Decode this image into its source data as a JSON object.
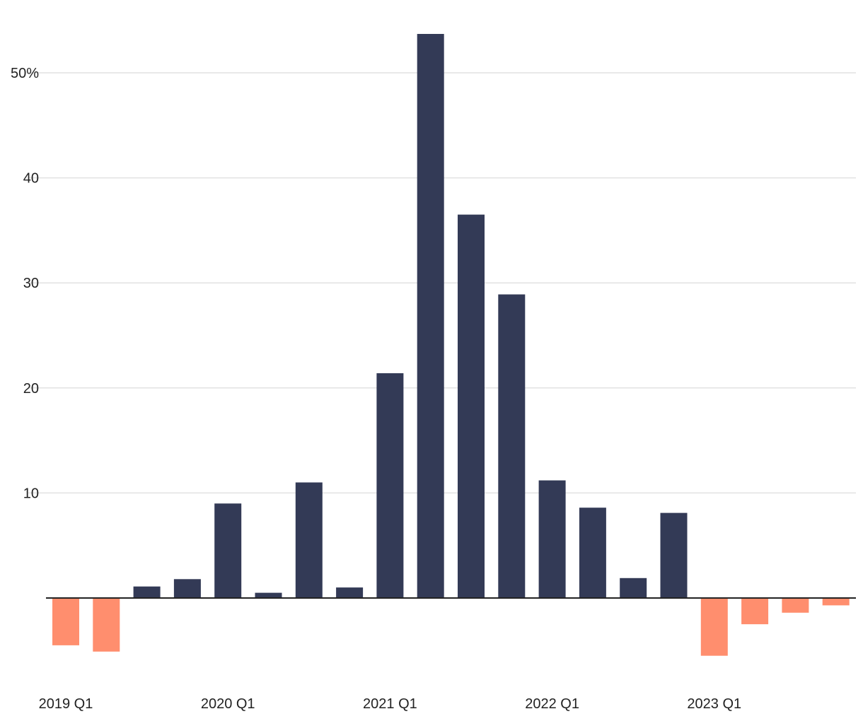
{
  "chart_data": {
    "type": "bar",
    "title": "",
    "xlabel": "",
    "ylabel": "",
    "ylim": [
      -13,
      58
    ],
    "grid": true,
    "categories": [
      "2019 Q1",
      "2019 Q2",
      "2019 Q3",
      "2019 Q4",
      "2020 Q1",
      "2020 Q2",
      "2020 Q3",
      "2020 Q4",
      "2021 Q1",
      "2021 Q2",
      "2021 Q3",
      "2021 Q4",
      "2022 Q1",
      "2022 Q2",
      "2022 Q3",
      "2022 Q4",
      "2023 Q1",
      "2023 Q2",
      "2023 Q3",
      "2023 Q4"
    ],
    "values": [
      -4.5,
      -5.1,
      1.1,
      1.8,
      9.0,
      0.5,
      11.0,
      1.0,
      21.4,
      53.7,
      36.5,
      28.9,
      11.2,
      8.6,
      1.9,
      8.1,
      -5.5,
      -2.5,
      -1.4,
      -0.7
    ],
    "x_tick_labels": [
      "2019 Q1",
      "2020 Q1",
      "2021 Q1",
      "2022 Q1",
      "2023 Q1"
    ],
    "y_ticks": [
      10,
      20,
      30,
      40,
      50
    ],
    "y_tick_labels": [
      "10",
      "20",
      "30",
      "40",
      "50%"
    ],
    "colors": {
      "positive": "#333a56",
      "negative": "#ff8e6e",
      "grid": "#e2e2e2",
      "axis": "#222222"
    }
  }
}
